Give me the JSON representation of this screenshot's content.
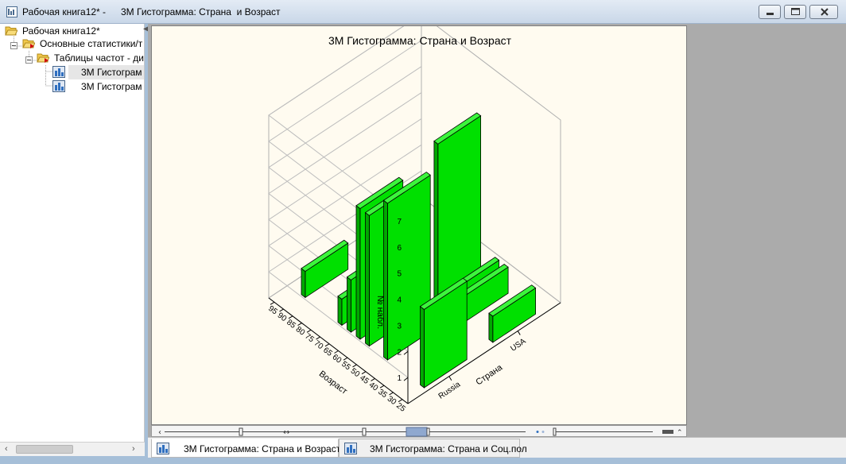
{
  "window": {
    "title": "Рабочая книга12* -",
    "document_title": "3М Гистограмма: Страна  и Возраст",
    "controls": [
      "minimize-icon",
      "maximize-icon",
      "close-icon"
    ]
  },
  "tree": {
    "root": "Рабочая книга12*",
    "level1": "Основные статистики/т",
    "level2": "Таблицы частот - ди",
    "items": [
      "3М Гистограм",
      "3М Гистограм"
    ]
  },
  "tabs": [
    {
      "label": "3М Гистограмма: Страна  и Возраст",
      "active": true
    },
    {
      "label": "3М Гистограмма: Страна  и Соц.пол",
      "active": false
    }
  ],
  "colors": {
    "bar_front": "#00e000",
    "bar_top": "#3cf53c",
    "bar_side": "#00a800",
    "plot_bg": "#fffbf0"
  },
  "chart_data": {
    "type": "bar3d",
    "title": "3М Гистограмма: Страна  и Возраст",
    "xlabel": "Возраст",
    "ylabel": "Страна",
    "zlabel": "№ набл.",
    "zlim": [
      0,
      7
    ],
    "z_ticks": [
      "1",
      "2",
      "3",
      "4",
      "5",
      "6",
      "7"
    ],
    "x_ticks": [
      "25",
      "30",
      "35",
      "40",
      "45",
      "50",
      "55",
      "60",
      "65",
      "70",
      "75",
      "80",
      "85",
      "90",
      "95"
    ],
    "y_ticks": [
      "Russia",
      "USA"
    ],
    "series": [
      {
        "name": "Russia",
        "x": [
          25,
          45,
          55,
          60,
          65,
          70,
          90
        ],
        "values": [
          3,
          6,
          5,
          5,
          2,
          1,
          1
        ]
      },
      {
        "name": "USA",
        "x": [
          25,
          40,
          45,
          55,
          90
        ],
        "values": [
          1,
          1,
          1,
          6,
          1
        ]
      }
    ],
    "grid": true
  }
}
